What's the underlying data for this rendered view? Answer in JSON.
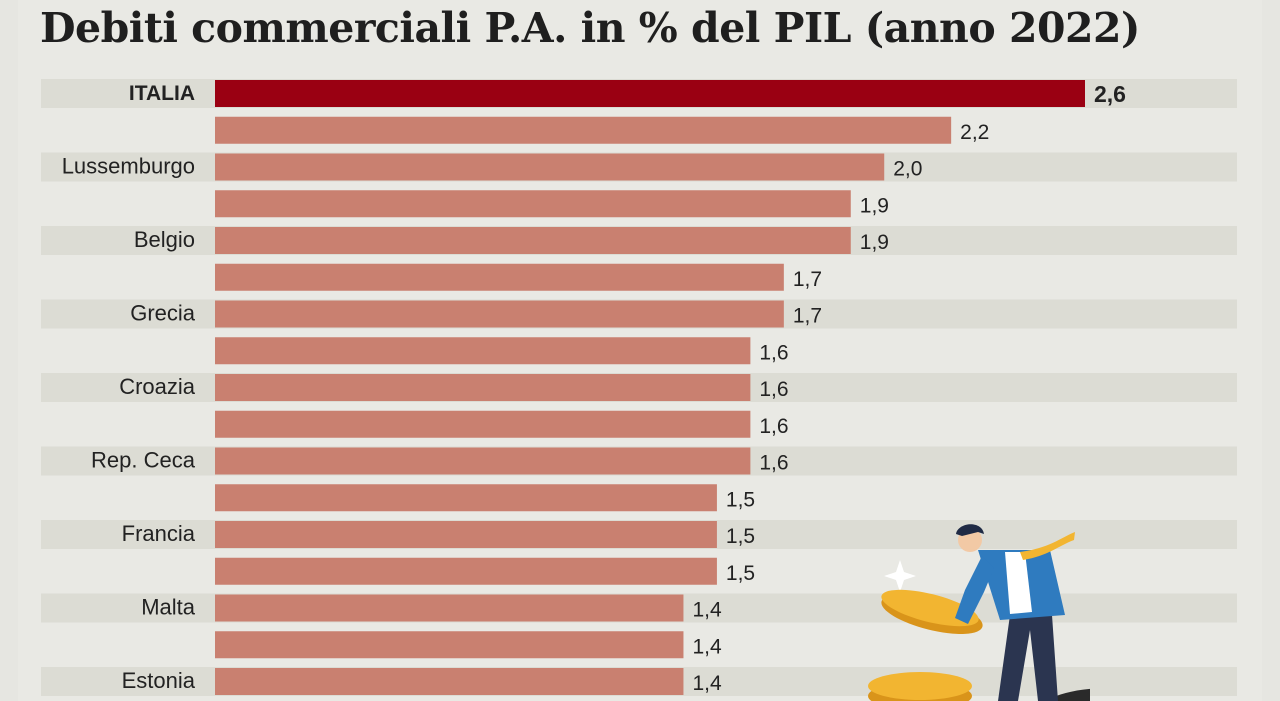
{
  "title": "Debiti commerciali P.A. in % del PIL (anno 2022)",
  "colors": {
    "highlight": "#9a0012",
    "bar": "#c98070",
    "stripe": "#dcdcd4",
    "text": "#222222"
  },
  "chart_data": {
    "type": "bar",
    "orientation": "horizontal",
    "title": "Debiti commerciali P.A. in % del PIL (anno 2022)",
    "categories": [
      "ITALIA",
      "",
      "Lussemburgo",
      "",
      "Belgio",
      "",
      "Grecia",
      "",
      "Croazia",
      "",
      "Rep. Ceca",
      "",
      "Francia",
      "",
      "Malta",
      "",
      "Estonia"
    ],
    "values": [
      2.6,
      2.2,
      2.0,
      1.9,
      1.9,
      1.7,
      1.7,
      1.6,
      1.6,
      1.6,
      1.6,
      1.5,
      1.5,
      1.5,
      1.4,
      1.4,
      1.4
    ],
    "value_labels": [
      "2,6",
      "2,2",
      "2,0",
      "1,9",
      "1,9",
      "1,7",
      "1,7",
      "1,6",
      "1,6",
      "1,6",
      "1,6",
      "1,5",
      "1,5",
      "1,5",
      "1,4",
      "1,4",
      "1,4"
    ],
    "highlight_index": 0,
    "xlim": [
      0,
      2.6
    ],
    "grid": false
  }
}
